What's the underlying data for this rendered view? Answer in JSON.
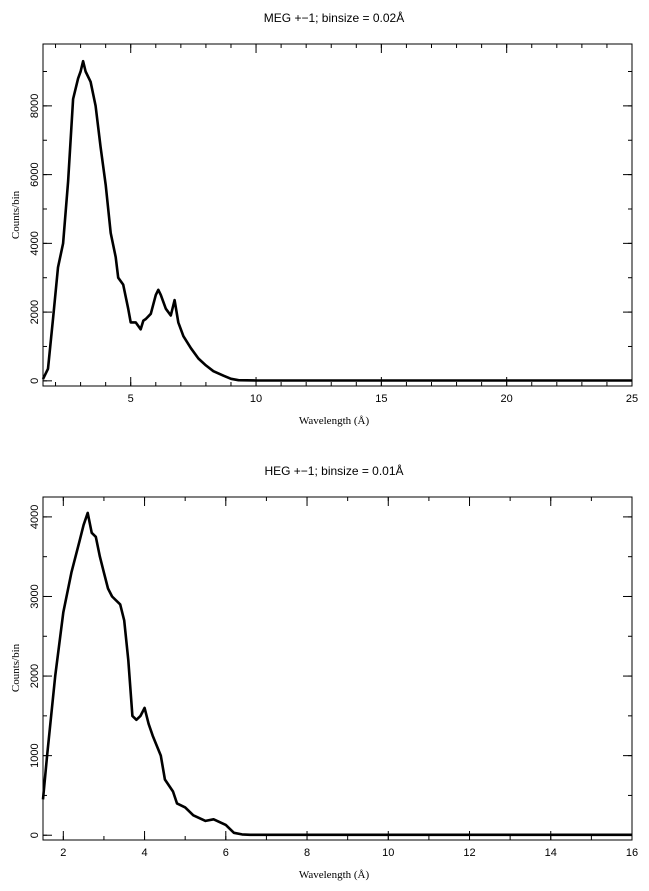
{
  "chart_data": [
    {
      "type": "line",
      "title": "MEG +−1; binsize = 0.02Å",
      "xlabel": "Wavelength (Å)",
      "ylabel": "Counts/bin",
      "xlim": [
        1.5,
        25
      ],
      "ylim": [
        -150,
        9800
      ],
      "xticks": [
        5,
        10,
        15,
        20,
        25
      ],
      "yticks": [
        0,
        2000,
        4000,
        6000,
        8000
      ],
      "grid": false,
      "series": [
        {
          "x": [
            1.5,
            1.7,
            1.9,
            2.1,
            2.3,
            2.5,
            2.7,
            2.9,
            3.0,
            3.1,
            3.2,
            3.4,
            3.6,
            3.8,
            4.0,
            4.2,
            4.4,
            4.5,
            4.7,
            4.9,
            5.0,
            5.2,
            5.4,
            5.5,
            5.6,
            5.8,
            6.0,
            6.1,
            6.2,
            6.4,
            6.6,
            6.75,
            6.9,
            7.1,
            7.4,
            7.7,
            8.0,
            8.3,
            8.7,
            9.0,
            9.3,
            10,
            12,
            15,
            20,
            25
          ],
          "values": [
            50,
            350,
            1800,
            3300,
            4000,
            5800,
            8200,
            8800,
            9000,
            9300,
            9000,
            8700,
            8000,
            6800,
            5700,
            4300,
            3600,
            3000,
            2800,
            2100,
            1700,
            1700,
            1500,
            1750,
            1800,
            1950,
            2500,
            2650,
            2500,
            2100,
            1900,
            2350,
            1700,
            1300,
            950,
            650,
            450,
            280,
            150,
            60,
            20,
            10,
            10,
            10,
            10,
            10
          ]
        }
      ]
    },
    {
      "type": "line",
      "title": "HEG +−1; binsize = 0.01Å",
      "xlabel": "Wavelength (Å)",
      "ylabel": "Counts/bin",
      "xlim": [
        1.5,
        16
      ],
      "ylim": [
        -60,
        4250
      ],
      "xticks": [
        2,
        4,
        6,
        8,
        10,
        12,
        14,
        16
      ],
      "yticks": [
        0,
        1000,
        2000,
        3000,
        4000
      ],
      "grid": false,
      "series": [
        {
          "x": [
            1.5,
            1.6,
            1.8,
            2.0,
            2.2,
            2.4,
            2.5,
            2.6,
            2.7,
            2.8,
            2.9,
            3.0,
            3.1,
            3.2,
            3.4,
            3.5,
            3.6,
            3.7,
            3.8,
            3.9,
            4.0,
            4.1,
            4.2,
            4.4,
            4.5,
            4.7,
            4.8,
            5.0,
            5.2,
            5.5,
            5.7,
            6.0,
            6.2,
            6.4,
            6.6,
            8,
            10,
            12,
            14,
            16
          ],
          "values": [
            450,
            1000,
            2000,
            2800,
            3300,
            3700,
            3900,
            4050,
            3800,
            3750,
            3500,
            3300,
            3100,
            3000,
            2900,
            2700,
            2200,
            1500,
            1450,
            1500,
            1600,
            1400,
            1250,
            1000,
            700,
            550,
            400,
            350,
            250,
            180,
            200,
            130,
            30,
            10,
            5,
            5,
            5,
            5,
            5,
            5
          ]
        }
      ]
    }
  ]
}
